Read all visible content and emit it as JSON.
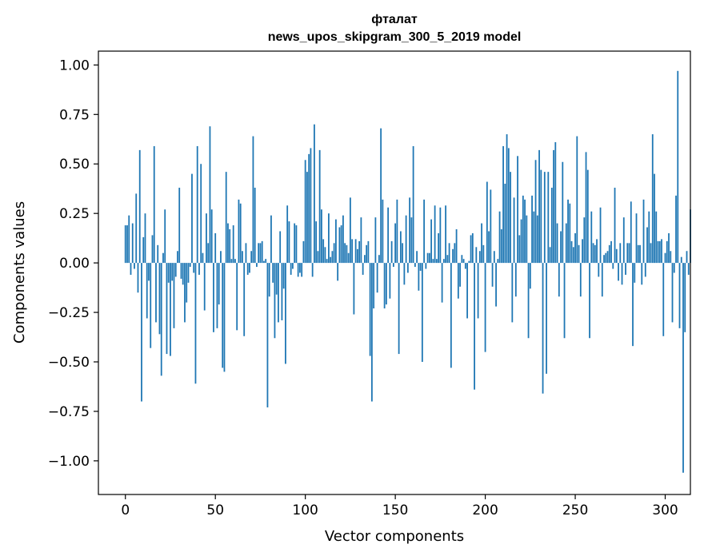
{
  "chart_data": {
    "type": "bar",
    "title": "фталат",
    "subtitle": "news_upos_skipgram_300_5_2019 model",
    "xlabel": "Vector components",
    "ylabel": "Components values",
    "xlim": [
      -15,
      314
    ],
    "ylim": [
      -1.17,
      1.07
    ],
    "xticks": [
      0,
      50,
      100,
      150,
      200,
      250,
      300
    ],
    "xtick_labels": [
      "0",
      "50",
      "100",
      "150",
      "200",
      "250",
      "300"
    ],
    "yticks": [
      1.0,
      0.75,
      0.5,
      0.25,
      0.0,
      -0.25,
      -0.5,
      -0.75,
      -1.0
    ],
    "ytick_labels": [
      "1.00",
      "0.75",
      "0.50",
      "0.25",
      "0.00",
      "−0.25",
      "−0.50",
      "−0.75",
      "−1.00"
    ],
    "bar_color": "#1f77b4",
    "values": [
      0.19,
      0.19,
      0.24,
      -0.06,
      0.2,
      -0.03,
      0.35,
      -0.15,
      0.57,
      -0.7,
      0.13,
      0.25,
      -0.28,
      -0.09,
      -0.43,
      0.14,
      0.59,
      -0.3,
      0.09,
      -0.36,
      -0.57,
      0.05,
      0.27,
      -0.46,
      -0.1,
      -0.47,
      -0.09,
      -0.33,
      -0.07,
      0.06,
      0.38,
      -0.08,
      -0.11,
      -0.3,
      -0.2,
      -0.1,
      -0.02,
      0.45,
      -0.05,
      -0.61,
      0.59,
      -0.06,
      0.5,
      0.05,
      -0.24,
      0.25,
      0.1,
      0.69,
      0.27,
      -0.35,
      0.15,
      -0.33,
      -0.21,
      0.06,
      -0.53,
      -0.55,
      0.46,
      0.2,
      0.17,
      0.02,
      0.19,
      0.02,
      -0.34,
      0.32,
      0.3,
      0.06,
      -0.37,
      0.1,
      -0.06,
      -0.05,
      0.06,
      0.64,
      0.38,
      -0.02,
      0.1,
      0.1,
      0.11,
      0.01,
      0.02,
      -0.73,
      -0.17,
      0.24,
      -0.1,
      -0.38,
      -0.16,
      -0.3,
      0.16,
      -0.29,
      -0.13,
      -0.51,
      0.29,
      0.21,
      -0.06,
      -0.03,
      0.2,
      0.19,
      -0.07,
      -0.05,
      -0.07,
      0.11,
      0.52,
      0.46,
      0.55,
      0.58,
      -0.07,
      0.7,
      0.21,
      0.06,
      0.57,
      0.27,
      0.12,
      0.08,
      0.02,
      0.25,
      0.03,
      0.06,
      0.1,
      0.22,
      -0.09,
      0.18,
      0.19,
      0.24,
      0.1,
      0.09,
      0.05,
      0.33,
      0.12,
      -0.26,
      0.12,
      0.07,
      0.11,
      0.23,
      -0.06,
      0.04,
      0.09,
      0.11,
      -0.47,
      -0.7,
      -0.23,
      0.23,
      -0.15,
      0.04,
      0.68,
      0.32,
      -0.23,
      -0.21,
      0.28,
      -0.18,
      0.11,
      -0.02,
      0.2,
      0.32,
      -0.46,
      0.16,
      0.1,
      -0.11,
      0.24,
      -0.05,
      0.33,
      0.23,
      0.59,
      -0.02,
      0.06,
      -0.14,
      -0.04,
      -0.5,
      0.32,
      -0.03,
      0.05,
      0.05,
      0.22,
      0.02,
      0.29,
      0.02,
      0.15,
      0.28,
      -0.2,
      0.02,
      0.29,
      0.04,
      0.1,
      -0.53,
      0.07,
      0.1,
      0.17,
      -0.18,
      -0.12,
      0.04,
      0.02,
      -0.03,
      -0.28,
      0.01,
      0.14,
      0.15,
      -0.64,
      0.08,
      -0.28,
      0.06,
      0.2,
      0.09,
      -0.45,
      0.41,
      0.16,
      0.37,
      -0.12,
      0.06,
      -0.22,
      0.02,
      0.26,
      0.17,
      0.59,
      0.4,
      0.65,
      0.58,
      0.46,
      -0.3,
      0.33,
      -0.17,
      0.54,
      0.14,
      0.22,
      0.34,
      0.32,
      0.24,
      -0.38,
      -0.13,
      0.34,
      0.26,
      0.52,
      0.24,
      0.57,
      0.47,
      -0.66,
      0.46,
      -0.56,
      0.46,
      0.08,
      0.38,
      0.57,
      0.61,
      0.2,
      -0.17,
      0.16,
      0.51,
      -0.38,
      0.2,
      0.32,
      0.3,
      0.11,
      0.08,
      0.15,
      0.64,
      0.09,
      -0.17,
      0.12,
      0.23,
      0.56,
      0.47,
      -0.38,
      0.26,
      0.1,
      0.09,
      0.12,
      -0.07,
      0.28,
      -0.17,
      0.04,
      0.05,
      0.06,
      0.09,
      0.11,
      -0.03,
      0.38,
      0.07,
      -0.09,
      0.1,
      -0.11,
      0.23,
      -0.06,
      0.1,
      0.1,
      0.31,
      -0.42,
      -0.1,
      0.25,
      0.09,
      0.09,
      -0.11,
      0.32,
      -0.07,
      0.18,
      0.26,
      0.1,
      0.65,
      0.45,
      0.26,
      0.11,
      0.11,
      0.12,
      -0.37,
      0.05,
      0.11,
      0.15,
      0.06,
      -0.3,
      -0.05,
      0.34,
      0.97,
      -0.33,
      0.03,
      -1.06,
      -0.35,
      0.06,
      -0.06,
      0.27
    ]
  }
}
